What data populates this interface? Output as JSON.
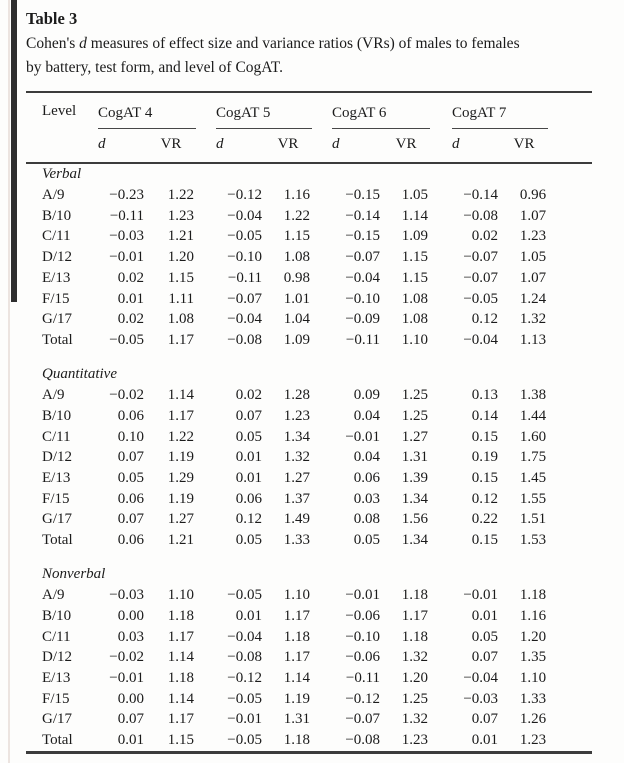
{
  "title": "Table 3",
  "caption": {
    "line1_pre": "Cohen's ",
    "line1_d": "d",
    "line1_post": " measures of effect size and variance ratios (VRs) of males to females",
    "line2": "by battery, test form, and level of CogAT."
  },
  "columns": {
    "level_label": "Level",
    "groups": [
      {
        "label": "CogAT 4"
      },
      {
        "label": "CogAT 5"
      },
      {
        "label": "CogAT 6"
      },
      {
        "label": "CogAT 7"
      }
    ],
    "sub_d": "d",
    "sub_vr": "VR"
  },
  "sections": [
    {
      "label": "Verbal",
      "rows": [
        {
          "level": "A/9",
          "values": [
            "−0.23",
            "1.22",
            "−0.12",
            "1.16",
            "−0.15",
            "1.05",
            "−0.14",
            "0.96"
          ]
        },
        {
          "level": "B/10",
          "values": [
            "−0.11",
            "1.23",
            "−0.04",
            "1.22",
            "−0.14",
            "1.14",
            "−0.08",
            "1.07"
          ]
        },
        {
          "level": "C/11",
          "values": [
            "−0.03",
            "1.21",
            "−0.05",
            "1.15",
            "−0.15",
            "1.09",
            "0.02",
            "1.23"
          ]
        },
        {
          "level": "D/12",
          "values": [
            "−0.01",
            "1.20",
            "−0.10",
            "1.08",
            "−0.07",
            "1.15",
            "−0.07",
            "1.05"
          ]
        },
        {
          "level": "E/13",
          "values": [
            "0.02",
            "1.15",
            "−0.11",
            "0.98",
            "−0.04",
            "1.15",
            "−0.07",
            "1.07"
          ]
        },
        {
          "level": "F/15",
          "values": [
            "0.01",
            "1.11",
            "−0.07",
            "1.01",
            "−0.10",
            "1.08",
            "−0.05",
            "1.24"
          ]
        },
        {
          "level": "G/17",
          "values": [
            "0.02",
            "1.08",
            "−0.04",
            "1.04",
            "−0.09",
            "1.08",
            "0.12",
            "1.32"
          ]
        },
        {
          "level": "Total",
          "values": [
            "−0.05",
            "1.17",
            "−0.08",
            "1.09",
            "−0.11",
            "1.10",
            "−0.04",
            "1.13"
          ]
        }
      ]
    },
    {
      "label": "Quantitative",
      "rows": [
        {
          "level": "A/9",
          "values": [
            "−0.02",
            "1.14",
            "0.02",
            "1.28",
            "0.09",
            "1.25",
            "0.13",
            "1.38"
          ]
        },
        {
          "level": "B/10",
          "values": [
            "0.06",
            "1.17",
            "0.07",
            "1.23",
            "0.04",
            "1.25",
            "0.14",
            "1.44"
          ]
        },
        {
          "level": "C/11",
          "values": [
            "0.10",
            "1.22",
            "0.05",
            "1.34",
            "−0.01",
            "1.27",
            "0.15",
            "1.60"
          ]
        },
        {
          "level": "D/12",
          "values": [
            "0.07",
            "1.19",
            "0.01",
            "1.32",
            "0.04",
            "1.31",
            "0.19",
            "1.75"
          ]
        },
        {
          "level": "E/13",
          "values": [
            "0.05",
            "1.29",
            "0.01",
            "1.27",
            "0.06",
            "1.39",
            "0.15",
            "1.45"
          ]
        },
        {
          "level": "F/15",
          "values": [
            "0.06",
            "1.19",
            "0.06",
            "1.37",
            "0.03",
            "1.34",
            "0.12",
            "1.55"
          ]
        },
        {
          "level": "G/17",
          "values": [
            "0.07",
            "1.27",
            "0.12",
            "1.49",
            "0.08",
            "1.56",
            "0.22",
            "1.51"
          ]
        },
        {
          "level": "Total",
          "values": [
            "0.06",
            "1.21",
            "0.05",
            "1.33",
            "0.05",
            "1.34",
            "0.15",
            "1.53"
          ]
        }
      ]
    },
    {
      "label": "Nonverbal",
      "rows": [
        {
          "level": "A/9",
          "values": [
            "−0.03",
            "1.10",
            "−0.05",
            "1.10",
            "−0.01",
            "1.18",
            "−0.01",
            "1.18"
          ]
        },
        {
          "level": "B/10",
          "values": [
            "0.00",
            "1.18",
            "0.01",
            "1.17",
            "−0.06",
            "1.17",
            "0.01",
            "1.16"
          ]
        },
        {
          "level": "C/11",
          "values": [
            "0.03",
            "1.17",
            "−0.04",
            "1.18",
            "−0.10",
            "1.18",
            "0.05",
            "1.20"
          ]
        },
        {
          "level": "D/12",
          "values": [
            "−0.02",
            "1.14",
            "−0.08",
            "1.17",
            "−0.06",
            "1.32",
            "0.07",
            "1.35"
          ]
        },
        {
          "level": "E/13",
          "values": [
            "−0.01",
            "1.18",
            "−0.12",
            "1.14",
            "−0.11",
            "1.20",
            "−0.04",
            "1.10"
          ]
        },
        {
          "level": "F/15",
          "values": [
            "0.00",
            "1.14",
            "−0.05",
            "1.19",
            "−0.12",
            "1.25",
            "−0.03",
            "1.33"
          ]
        },
        {
          "level": "G/17",
          "values": [
            "0.07",
            "1.17",
            "−0.01",
            "1.31",
            "−0.07",
            "1.32",
            "0.07",
            "1.26"
          ]
        },
        {
          "level": "Total",
          "values": [
            "0.01",
            "1.15",
            "−0.05",
            "1.18",
            "−0.08",
            "1.23",
            "0.01",
            "1.23"
          ]
        }
      ]
    }
  ]
}
